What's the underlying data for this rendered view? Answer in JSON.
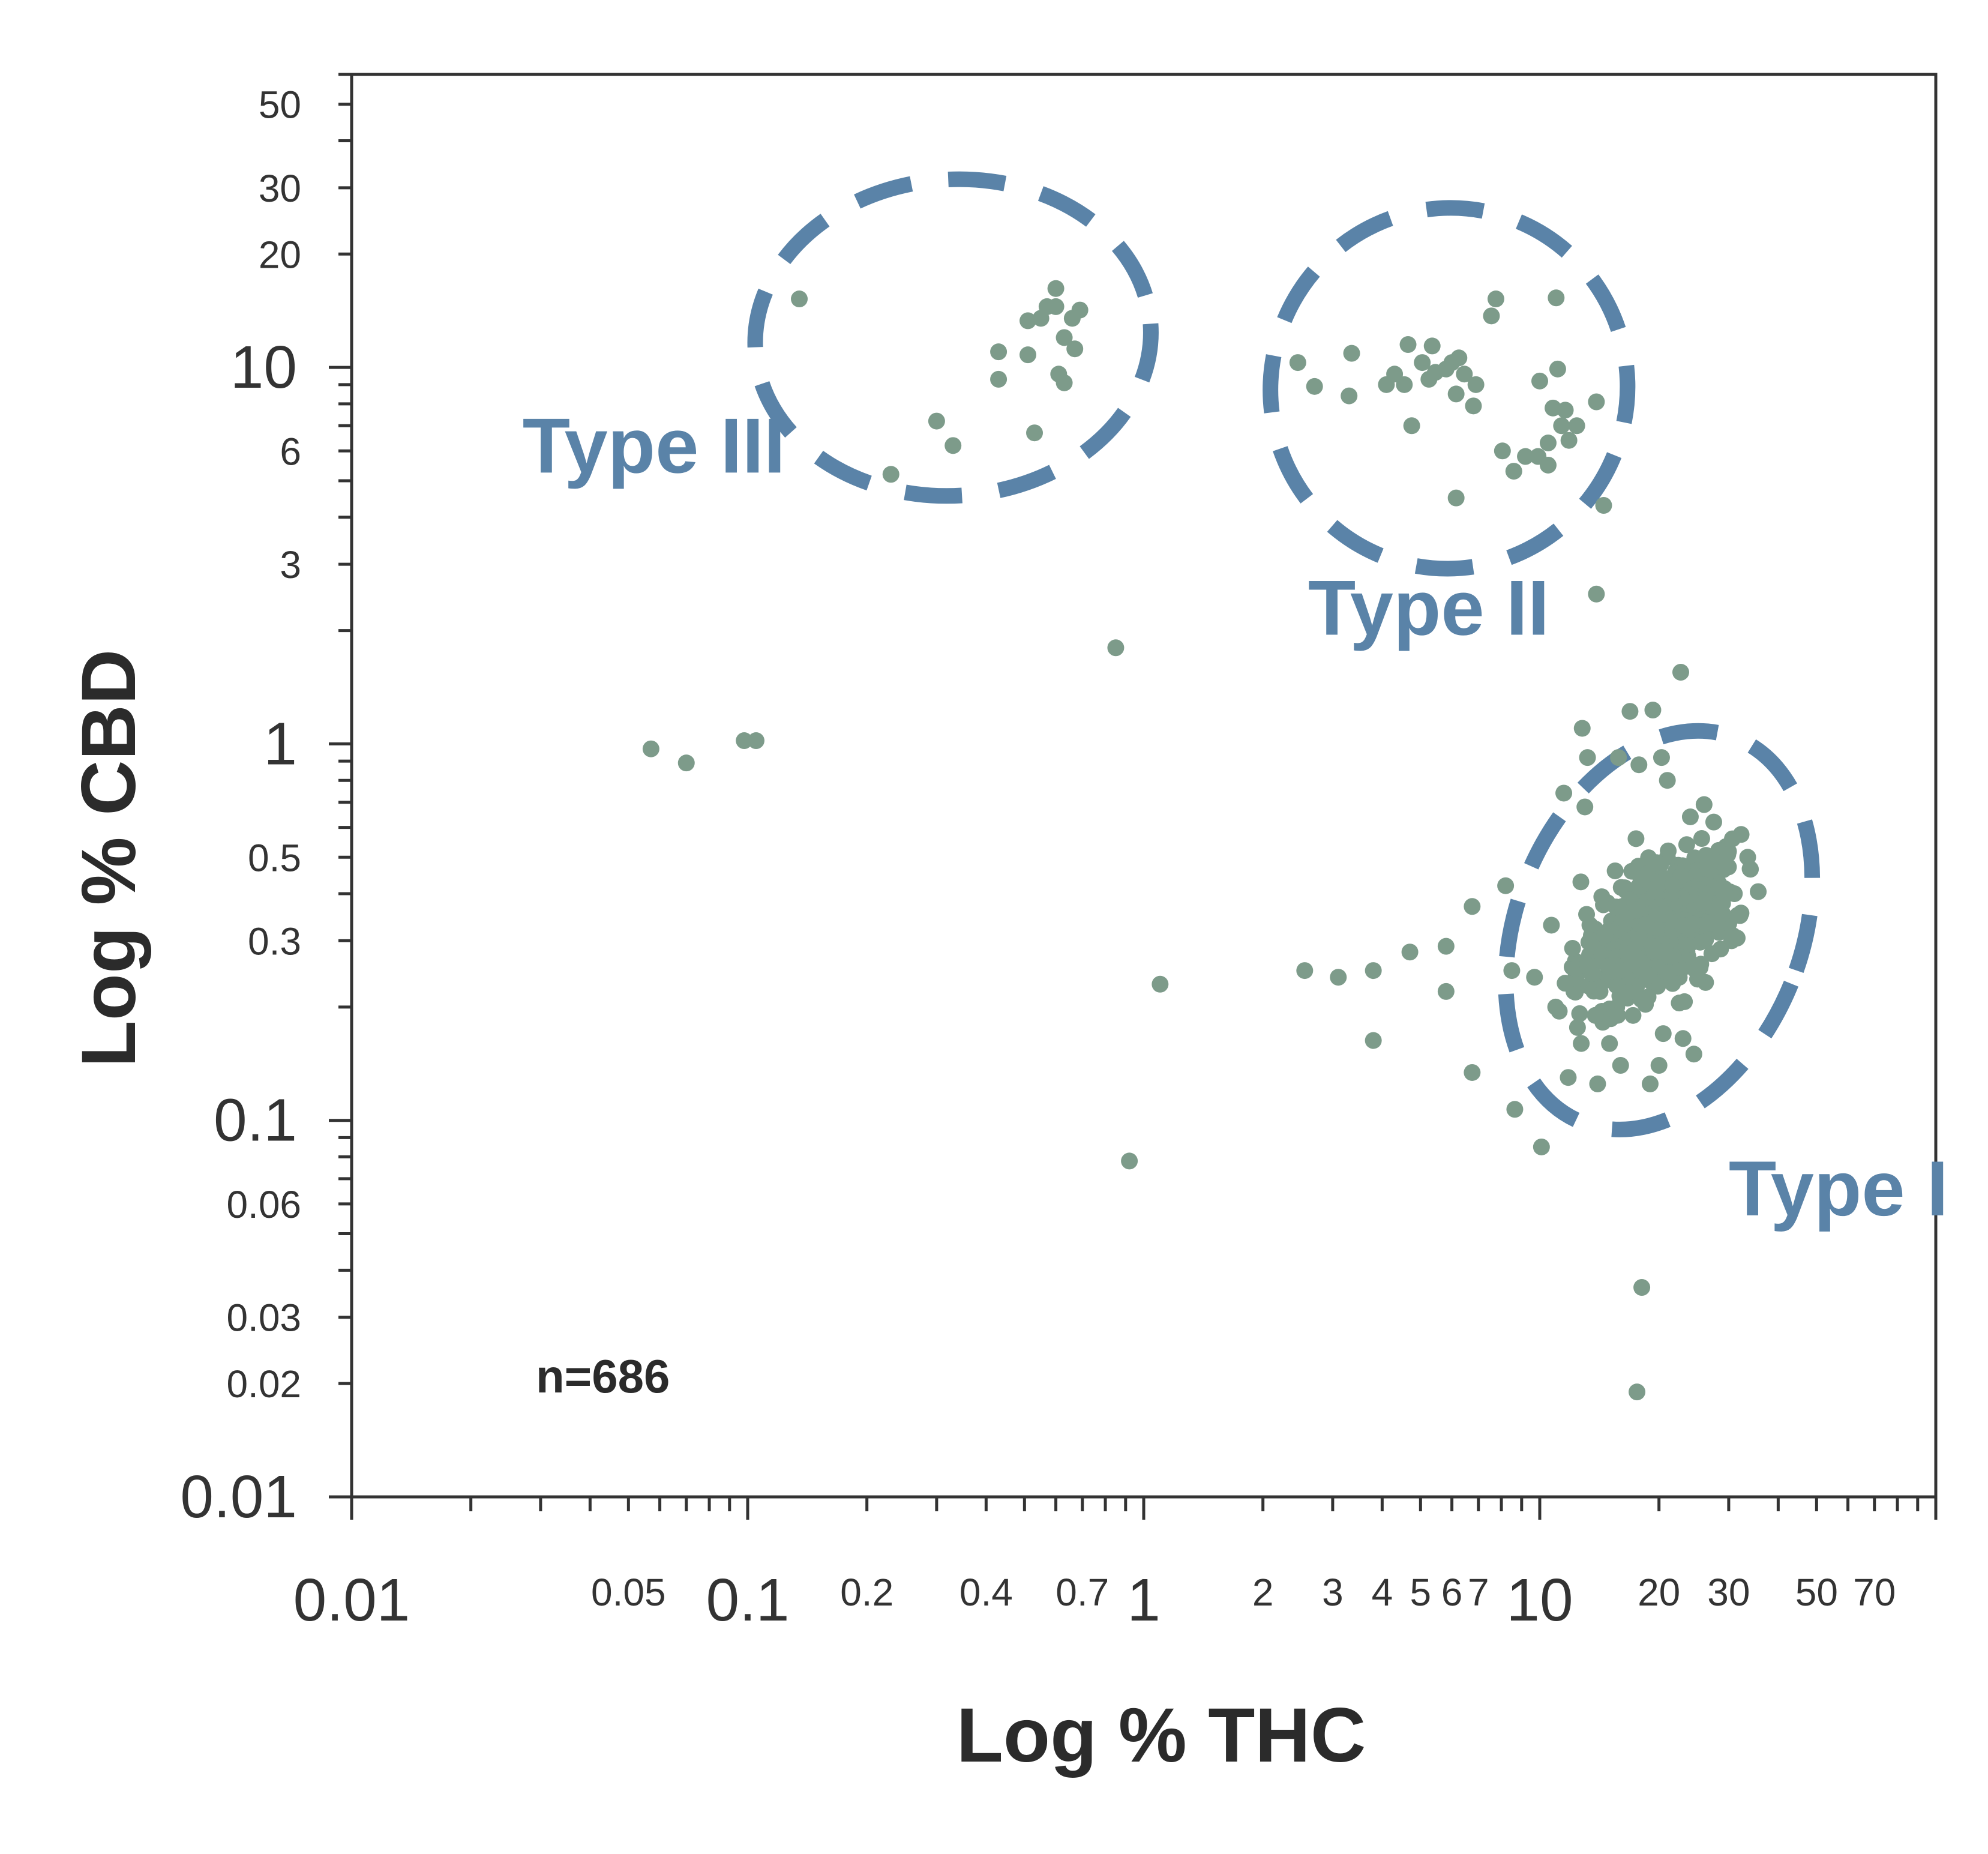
{
  "chart_data": {
    "type": "scatter",
    "title": "",
    "xlabel": "Log % THC",
    "ylabel": "Log % CBD",
    "x_scale": "log",
    "y_scale": "log",
    "xlim": [
      0.01,
      100
    ],
    "ylim": [
      0.01,
      60
    ],
    "grid": false,
    "legend": "none",
    "point_color": "#7d9b8a",
    "cluster_color": "#5a83a8",
    "axis_color": "#333333",
    "annotation": "n=686",
    "x_ticks": [
      {
        "value": 0.01,
        "label": "0.01",
        "major": true
      },
      {
        "value": 0.05,
        "label": "0.05",
        "major": false
      },
      {
        "value": 0.1,
        "label": "0.1",
        "major": true
      },
      {
        "value": 0.2,
        "label": "0.2",
        "major": false
      },
      {
        "value": 0.4,
        "label": "0.4",
        "major": false
      },
      {
        "value": 0.7,
        "label": "0.7",
        "major": false
      },
      {
        "value": 1,
        "label": "1",
        "major": true
      },
      {
        "value": 2,
        "label": "2",
        "major": false
      },
      {
        "value": 3,
        "label": "3",
        "major": false
      },
      {
        "value": 4,
        "label": "4",
        "major": false
      },
      {
        "value": 5,
        "label": "5",
        "major": false
      },
      {
        "value": 6,
        "label": "6",
        "major": false
      },
      {
        "value": 7,
        "label": "7",
        "major": false
      },
      {
        "value": 10,
        "label": "10",
        "major": true
      },
      {
        "value": 20,
        "label": "20",
        "major": false
      },
      {
        "value": 30,
        "label": "30",
        "major": false
      },
      {
        "value": 50,
        "label": "50",
        "major": false
      },
      {
        "value": 70,
        "label": "70",
        "major": false
      }
    ],
    "y_ticks": [
      {
        "value": 0.01,
        "label": "0.01",
        "major": true
      },
      {
        "value": 0.02,
        "label": "0.02",
        "major": false
      },
      {
        "value": 0.03,
        "label": "0.03",
        "major": false
      },
      {
        "value": 0.06,
        "label": "0.06",
        "major": false
      },
      {
        "value": 0.1,
        "label": "0.1",
        "major": true
      },
      {
        "value": 0.3,
        "label": "0.3",
        "major": false
      },
      {
        "value": 0.5,
        "label": "0.5",
        "major": false
      },
      {
        "value": 1,
        "label": "1",
        "major": true
      },
      {
        "value": 3,
        "label": "3",
        "major": false
      },
      {
        "value": 6,
        "label": "6",
        "major": false
      },
      {
        "value": 10,
        "label": "10",
        "major": true
      },
      {
        "value": 20,
        "label": "20",
        "major": false
      },
      {
        "value": 30,
        "label": "30",
        "major": false
      },
      {
        "value": 50,
        "label": "50",
        "major": false
      }
    ],
    "clusters": [
      {
        "name": "Type III",
        "cx": 0.33,
        "cy": 12,
        "rx_decades": 0.5,
        "ry_decades": 0.42,
        "angle": -4,
        "label_x": 0.027,
        "label_y": 6.2
      },
      {
        "name": "Type II",
        "cx": 5.9,
        "cy": 8.8,
        "rx_decades": 0.45,
        "ry_decades": 0.48,
        "angle": 22,
        "label_x": 2.6,
        "label_y": 2.3
      },
      {
        "name": "Type I",
        "cx": 20,
        "cy": 0.32,
        "rx_decades": 0.36,
        "ry_decades": 0.55,
        "angle": 22,
        "label_x": 30,
        "label_y": 0.066
      }
    ],
    "points": [
      [
        0.135,
        15.2
      ],
      [
        0.3,
        7.2
      ],
      [
        0.33,
        6.2
      ],
      [
        0.23,
        5.2
      ],
      [
        0.53,
        6.7
      ],
      [
        0.43,
        11.0
      ],
      [
        0.43,
        9.3
      ],
      [
        0.51,
        10.8
      ],
      [
        0.55,
        13.5
      ],
      [
        0.51,
        13.3
      ],
      [
        0.57,
        14.5
      ],
      [
        0.6,
        14.5
      ],
      [
        0.6,
        16.2
      ],
      [
        0.63,
        12.0
      ],
      [
        0.66,
        13.5
      ],
      [
        0.69,
        14.2
      ],
      [
        0.67,
        11.2
      ],
      [
        0.61,
        9.6
      ],
      [
        0.63,
        9.1
      ],
      [
        2.45,
        10.3
      ],
      [
        2.7,
        8.9
      ],
      [
        3.35,
        10.9
      ],
      [
        3.3,
        8.4
      ],
      [
        4.1,
        9.0
      ],
      [
        4.3,
        9.6
      ],
      [
        4.55,
        9.0
      ],
      [
        4.65,
        11.5
      ],
      [
        4.75,
        7.0
      ],
      [
        5.05,
        10.3
      ],
      [
        5.25,
        9.3
      ],
      [
        5.35,
        11.4
      ],
      [
        5.45,
        9.7
      ],
      [
        5.8,
        9.9
      ],
      [
        6.0,
        10.3
      ],
      [
        6.15,
        8.5
      ],
      [
        6.25,
        10.6
      ],
      [
        6.45,
        9.6
      ],
      [
        6.8,
        7.9
      ],
      [
        6.9,
        9.0
      ],
      [
        7.55,
        13.7
      ],
      [
        7.75,
        15.2
      ],
      [
        8.05,
        6.0
      ],
      [
        8.6,
        5.3
      ],
      [
        9.2,
        5.8
      ],
      [
        9.9,
        5.8
      ],
      [
        10.0,
        9.2
      ],
      [
        10.5,
        5.5
      ],
      [
        10.5,
        6.3
      ],
      [
        10.8,
        7.8
      ],
      [
        11.1,
        9.9
      ],
      [
        11.0,
        15.3
      ],
      [
        11.35,
        7.0
      ],
      [
        11.6,
        7.7
      ],
      [
        11.85,
        6.4
      ],
      [
        12.4,
        7.0
      ],
      [
        13.9,
        8.1
      ],
      [
        6.15,
        4.5
      ],
      [
        14.5,
        4.3
      ],
      [
        13.9,
        2.5
      ],
      [
        0.85,
        1.8
      ],
      [
        1.1,
        0.23
      ],
      [
        0.92,
        0.078
      ],
      [
        0.057,
        0.97
      ],
      [
        0.07,
        0.89
      ],
      [
        0.098,
        1.02
      ],
      [
        0.105,
        1.02
      ],
      [
        2.55,
        0.25
      ],
      [
        3.1,
        0.24
      ],
      [
        3.8,
        0.25
      ],
      [
        3.8,
        0.163
      ],
      [
        4.7,
        0.28
      ],
      [
        5.8,
        0.29
      ],
      [
        5.8,
        0.22
      ],
      [
        6.75,
        0.37
      ],
      [
        6.75,
        0.134
      ],
      [
        8.2,
        0.42
      ],
      [
        8.5,
        0.25
      ],
      [
        8.65,
        0.107
      ],
      [
        9.7,
        0.24
      ],
      [
        10.1,
        0.085
      ],
      [
        18.1,
        0.036
      ],
      [
        17.6,
        0.019
      ],
      [
        22.7,
        1.55
      ],
      [
        19.3,
        1.23
      ],
      [
        16.9,
        1.22
      ],
      [
        12.8,
        1.1
      ],
      [
        13.2,
        0.92
      ],
      [
        13.0,
        0.68
      ],
      [
        11.5,
        0.74
      ],
      [
        15.5,
        0.46
      ],
      [
        17.5,
        0.56
      ],
      [
        18.5,
        0.43
      ],
      [
        21.0,
        0.5
      ],
      [
        24.0,
        0.38
      ],
      [
        26.5,
        0.45
      ],
      [
        28.0,
        0.49
      ],
      [
        16.5,
        0.27
      ],
      [
        19.5,
        0.24
      ],
      [
        22.5,
        0.24
      ],
      [
        25.5,
        0.26
      ],
      [
        30.5,
        0.3
      ],
      [
        13.5,
        0.31
      ],
      [
        14.2,
        0.22
      ],
      [
        15.0,
        0.16
      ],
      [
        17.2,
        0.19
      ],
      [
        20.5,
        0.17
      ],
      [
        23.0,
        0.165
      ],
      [
        16.0,
        0.14
      ],
      [
        12.2,
        0.22
      ],
      [
        11.2,
        0.195
      ],
      [
        10.7,
        0.33
      ],
      [
        12.7,
        0.43
      ],
      [
        18.8,
        0.33
      ],
      [
        21.5,
        0.3
      ],
      [
        23.5,
        0.54
      ],
      [
        15.8,
        0.92
      ],
      [
        17.8,
        0.88
      ],
      [
        20.3,
        0.92
      ],
      [
        21.0,
        0.8
      ],
      [
        24.0,
        0.64
      ],
      [
        27.5,
        0.62
      ],
      [
        26.0,
        0.69
      ],
      [
        28.5,
        0.33
      ],
      [
        31.0,
        0.4
      ],
      [
        33.5,
        0.5
      ],
      [
        22.5,
        0.205
      ],
      [
        20.0,
        0.14
      ],
      [
        24.5,
        0.15
      ],
      [
        19.0,
        0.125
      ],
      [
        14.0,
        0.125
      ],
      [
        11.8,
        0.13
      ],
      [
        12.3,
        0.265
      ],
      [
        17.5,
        0.36
      ],
      [
        16.5,
        0.28
      ]
    ],
    "cluster_core": [
      {
        "name": "Type I",
        "cx": 20,
        "cy": 0.32,
        "sx": 0.18,
        "sy": 0.2,
        "rho": 0.55,
        "count": 560
      }
    ]
  }
}
